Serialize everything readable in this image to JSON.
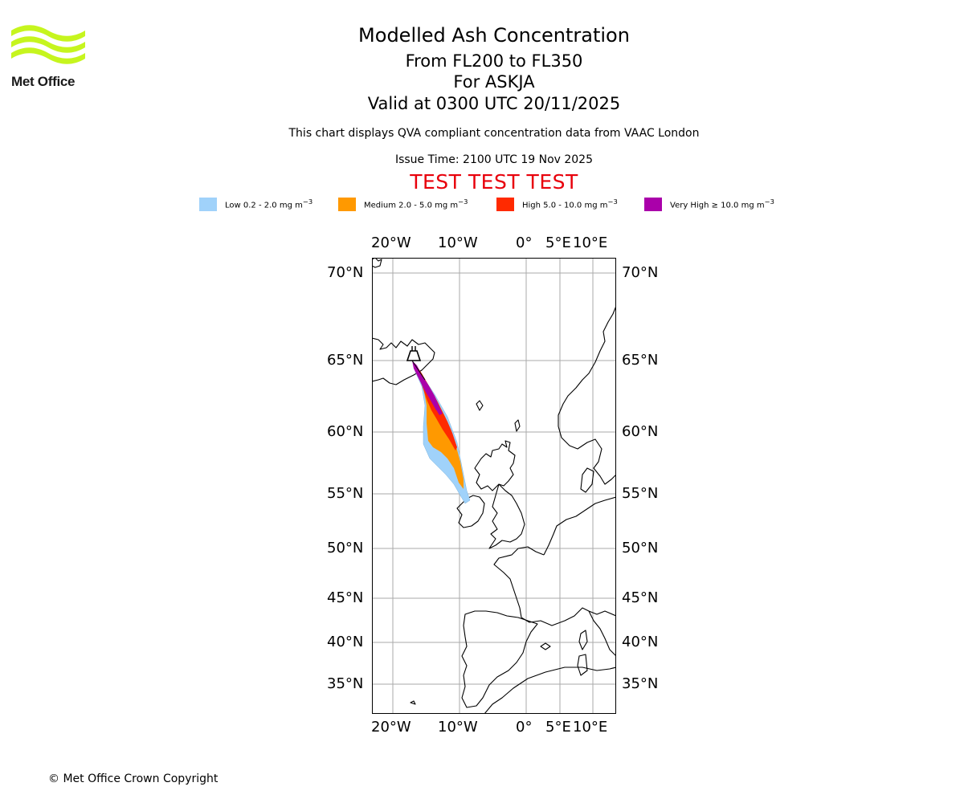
{
  "brand": {
    "name": "Met Office",
    "logo_color": "#c6f51e"
  },
  "title": {
    "main": "Modelled Ash Concentration",
    "levels": "From FL200 to FL350",
    "volcano": "For ASKJA",
    "valid": "Valid at 0300 UTC 20/11/2025"
  },
  "description": "This chart displays QVA compliant concentration data from VAAC London",
  "issue_time": "Issue Time: 2100 UTC 19 Nov 2025",
  "test_banner": "TEST TEST TEST",
  "legend": [
    {
      "label": "Low 0.2 - 2.0 mg m",
      "unit_sup": "−3",
      "color": "#a0d2fa"
    },
    {
      "label": "Medium 2.0 - 5.0 mg m",
      "unit_sup": "−3",
      "color": "#ff9900"
    },
    {
      "label": "High 5.0 - 10.0 mg m",
      "unit_sup": "−3",
      "color": "#ff2a00"
    },
    {
      "label": "Very High  ≥  10.0 mg m",
      "unit_sup": "−3",
      "color": "#aa00aa"
    }
  ],
  "map": {
    "longitude_labels": [
      "20°W",
      "10°W",
      "0°",
      "5°E",
      "10°E"
    ],
    "latitude_labels": [
      "70°N",
      "65°N",
      "60°N",
      "55°N",
      "50°N",
      "45°N",
      "40°N",
      "35°N"
    ],
    "gridline_color": "#aaaaaa"
  },
  "copyright": "© Met Office Crown Copyright"
}
